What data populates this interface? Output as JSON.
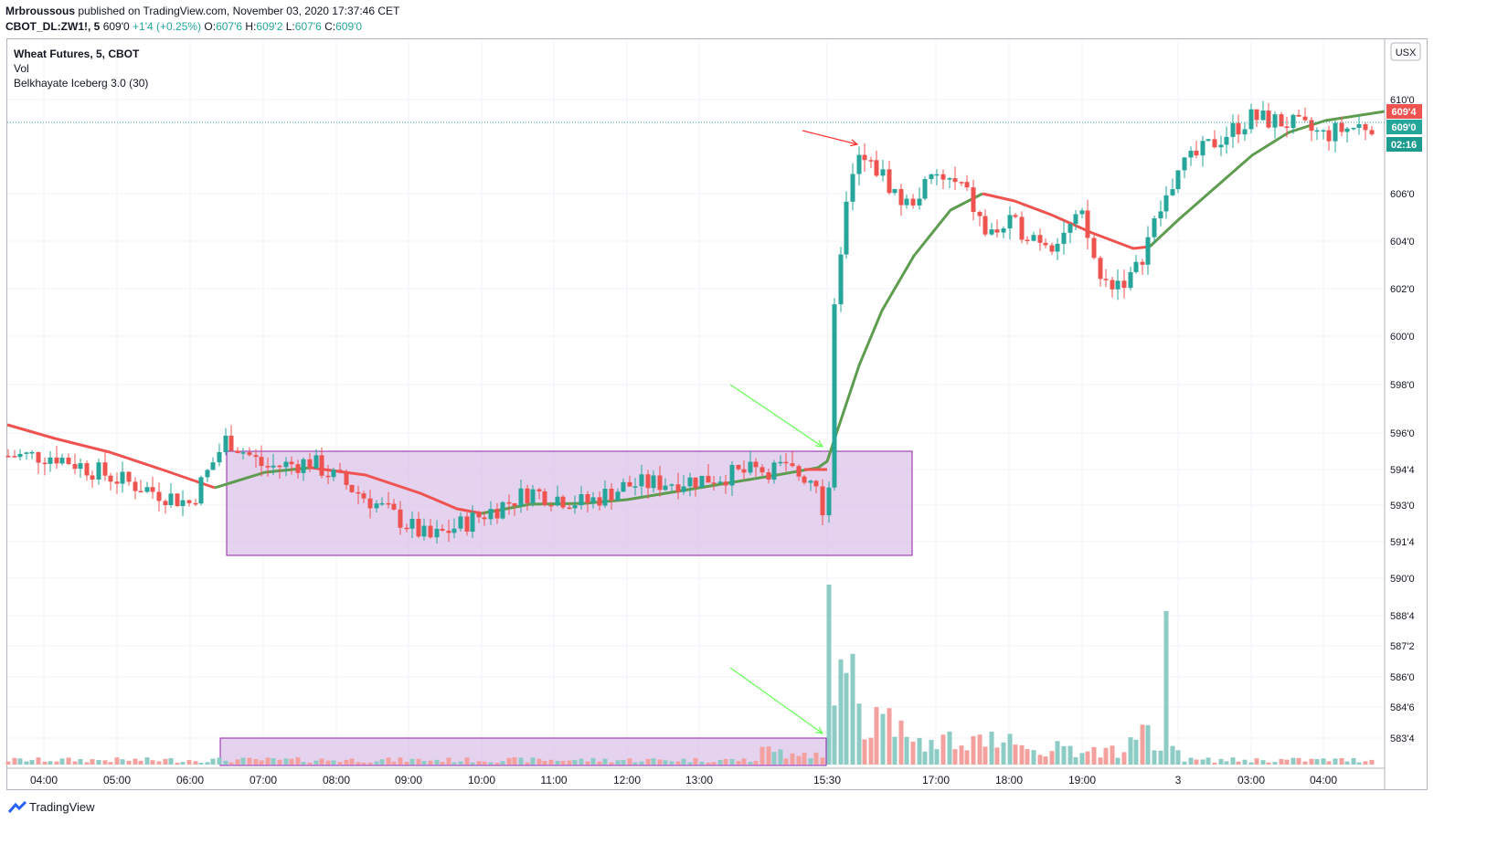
{
  "header": {
    "author": "Mrbroussous",
    "published_text": "published on TradingView.com, November 03, 2020 17:37:46 CET",
    "symbol_line": "CBOT_DL:ZW1!, 5",
    "last": "609'0",
    "change": "+1'4 (+0.25%)",
    "o_label": "O:",
    "o": "607'6",
    "h_label": "H:",
    "h": "609'2",
    "l_label": "L:",
    "l": "607'6",
    "c_label": "C:",
    "c": "609'0"
  },
  "legend": {
    "title": "Wheat Futures, 5, CBOT",
    "vol": "Vol",
    "indicator": "Belkhayate Iceberg 3.0 (30)"
  },
  "currency_button": "USX",
  "price_badges": {
    "price_red": "609'4",
    "price_green": "609'0",
    "countdown": "02:16"
  },
  "footer": {
    "logo_text": "TradingView"
  },
  "colors": {
    "up": "#26a69a",
    "down": "#ef5350",
    "vol_up": "#8dcbc5",
    "vol_down": "#f4a09e",
    "box": "#dcc3ea",
    "box_border": "#8e24aa",
    "ma_red": "#ef5350",
    "ma_green": "#5e9c4f",
    "arrow_green": "#66ff55",
    "arrow_red": "#ff3333"
  },
  "chart_data": {
    "type": "candlestick",
    "y_tick_labels": [
      "610'0",
      "606'0",
      "604'0",
      "602'0",
      "600'0",
      "598'0",
      "596'0",
      "594'4",
      "593'0",
      "591'4",
      "590'0",
      "588'4",
      "587'2",
      "586'0",
      "584'6",
      "583'4"
    ],
    "x_tick_labels": [
      "04:00",
      "05:00",
      "06:00",
      "07:00",
      "08:00",
      "09:00",
      "10:00",
      "11:00",
      "12:00",
      "13:00",
      "15:30",
      "17:00",
      "18:00",
      "19:00",
      "3",
      "03:00",
      "04:00"
    ],
    "approx_price_range": [
      590.75,
      610.25
    ],
    "ohlc_sample_points": [
      {
        "t": "04:00",
        "close": 595.0
      },
      {
        "t": "06:00",
        "close": 593.0
      },
      {
        "t": "07:00",
        "close": 594.5
      },
      {
        "t": "09:00",
        "close": 591.5
      },
      {
        "t": "12:00",
        "close": 593.0
      },
      {
        "t": "15:20",
        "close": 594.5
      },
      {
        "t": "15:30",
        "close": 596.75
      },
      {
        "t": "16:00",
        "close": 607.5
      },
      {
        "t": "17:00",
        "close": 606.75
      },
      {
        "t": "19:00",
        "close": 605.0
      },
      {
        "t": "20:00",
        "close": 602.25
      },
      {
        "t": "3",
        "close": 607.0
      },
      {
        "t": "03:00",
        "close": 609.0
      },
      {
        "t": "04:00",
        "close": 608.5
      },
      {
        "t": "04:40",
        "close": 609.0
      }
    ],
    "iceberg_line_samples": [
      {
        "t": "04:00",
        "value": 596.5
      },
      {
        "t": "06:00",
        "value": 593.5
      },
      {
        "t": "08:00",
        "value": 594.25
      },
      {
        "t": "10:00",
        "value": 593.0
      },
      {
        "t": "12:00",
        "value": 593.25
      },
      {
        "t": "15:30",
        "value": 594.5
      },
      {
        "t": "17:00",
        "value": 604.5
      },
      {
        "t": "18:00",
        "value": 606.25
      },
      {
        "t": "20:00",
        "value": 603.75
      },
      {
        "t": "03:00",
        "value": 607.5
      },
      {
        "t": "04:40",
        "value": 608.75
      }
    ],
    "volume_spikes": [
      {
        "t": "15:30",
        "relative": 1.0
      },
      {
        "t": "3",
        "relative": 0.82
      }
    ]
  }
}
